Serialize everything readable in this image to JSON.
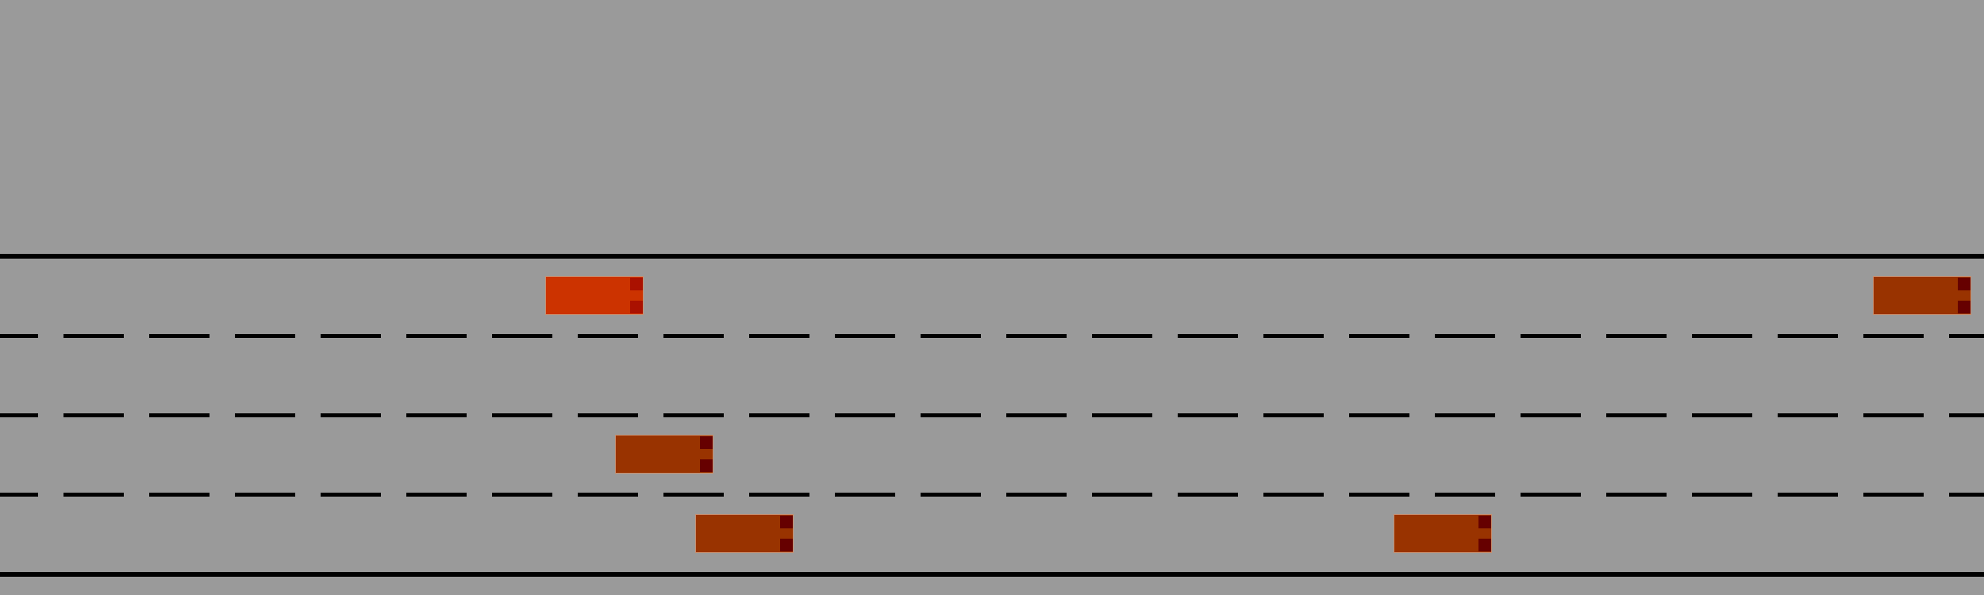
{
  "colors": {
    "ground": "#9a9a9a",
    "lane_marking": "#000000",
    "ego_vehicle": "#cc3300",
    "ego_lights": "#aa1100",
    "other_vehicle": "#993300",
    "other_lights": "#660000"
  },
  "road": {
    "lane_count": 4,
    "edge_marking": "solid",
    "divider_marking": "dashed"
  },
  "vehicles": [
    {
      "role": "ego",
      "lane": 1
    },
    {
      "role": "other",
      "lane": 1
    },
    {
      "role": "other",
      "lane": 3
    },
    {
      "role": "other",
      "lane": 4
    },
    {
      "role": "other",
      "lane": 4
    }
  ]
}
